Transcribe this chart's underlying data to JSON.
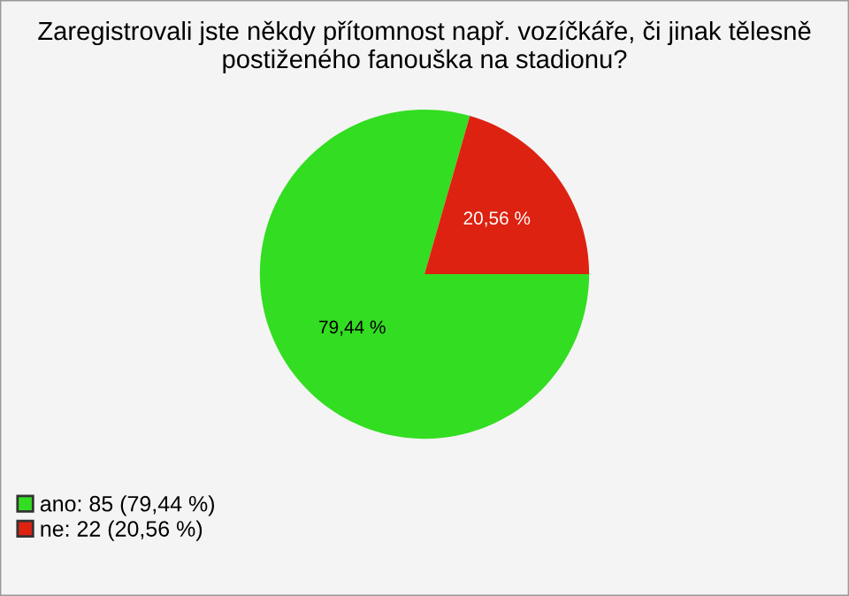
{
  "chart_data": {
    "type": "pie",
    "title": "Zaregistrovali jste někdy přítomnost např. vozíčkáře, či jinak tělesně postiženého fanouška na stadionu?",
    "categories": [
      "ano: 85 (79,44 %)",
      "ne: 22 (20,56 %)"
    ],
    "values": [
      79.44,
      20.56
    ],
    "colors": [
      "#33dd22",
      "#dd2211"
    ],
    "value_labels": [
      "79,44 %",
      "20,56 %"
    ],
    "legend": "bottom left"
  }
}
